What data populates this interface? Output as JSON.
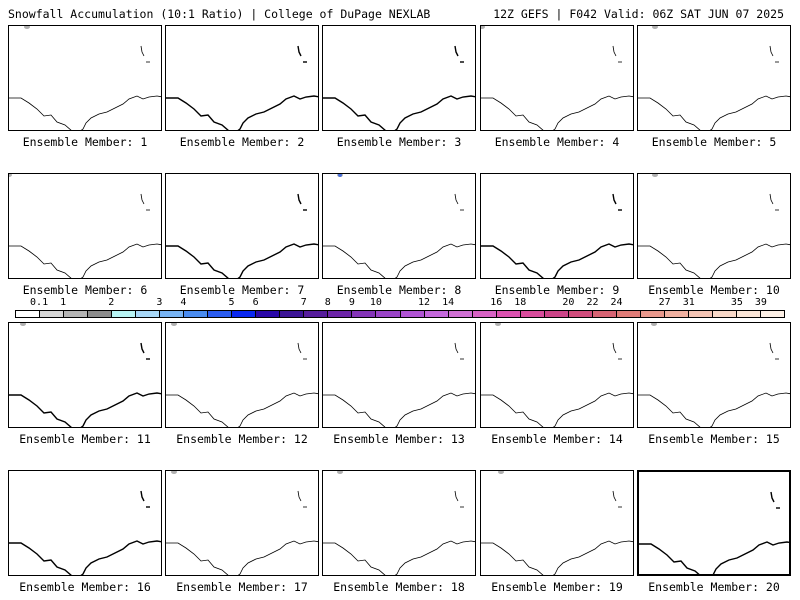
{
  "header": {
    "title": "Snowfall Accumulation (10:1 Ratio) | College of DuPage NEXLAB",
    "run_info": "12Z GEFS | F042 Valid: 06Z SAT JUN 07 2025"
  },
  "panels": [
    {
      "label": "Ensemble Member: 1"
    },
    {
      "label": "Ensemble Member: 2"
    },
    {
      "label": "Ensemble Member: 3"
    },
    {
      "label": "Ensemble Member: 4"
    },
    {
      "label": "Ensemble Member: 5"
    },
    {
      "label": "Ensemble Member: 6"
    },
    {
      "label": "Ensemble Member: 7"
    },
    {
      "label": "Ensemble Member: 8"
    },
    {
      "label": "Ensemble Member: 9"
    },
    {
      "label": "Ensemble Member: 10"
    },
    {
      "label": "Ensemble Member: 11"
    },
    {
      "label": "Ensemble Member: 12"
    },
    {
      "label": "Ensemble Member: 13"
    },
    {
      "label": "Ensemble Member: 14"
    },
    {
      "label": "Ensemble Member: 15"
    },
    {
      "label": "Ensemble Member: 16"
    },
    {
      "label": "Ensemble Member: 17"
    },
    {
      "label": "Ensemble Member: 18"
    },
    {
      "label": "Ensemble Member: 19"
    },
    {
      "label": "Ensemble Member: 20"
    }
  ],
  "colorbar": {
    "labels": [
      "0.1",
      "1",
      "2",
      "3",
      "4",
      "5",
      "6",
      "7",
      "8",
      "9",
      "10",
      "12",
      "14",
      "16",
      "18",
      "20",
      "22",
      "24",
      "27",
      "31",
      "35",
      "39"
    ],
    "colors": [
      "#ffffff",
      "#d6d6d6",
      "#b4b4b4",
      "#8c8c8c",
      "#b8f4f4",
      "#a8d8f8",
      "#78b4f4",
      "#4a8cf0",
      "#2a5cf0",
      "#0a28f0",
      "#2a08a8",
      "#3c1496",
      "#561c9c",
      "#6c24a8",
      "#8434b8",
      "#9a44c8",
      "#b054d4",
      "#c468dc",
      "#d070d4",
      "#d862c4",
      "#dc52b0",
      "#d84c9c",
      "#cc4488",
      "#d04c7c",
      "#d86474",
      "#e07c78",
      "#e8988c",
      "#f0b0a0",
      "#f4c4b4",
      "#f8d8c8",
      "#fbe6d8",
      "#fdf0e6"
    ]
  }
}
